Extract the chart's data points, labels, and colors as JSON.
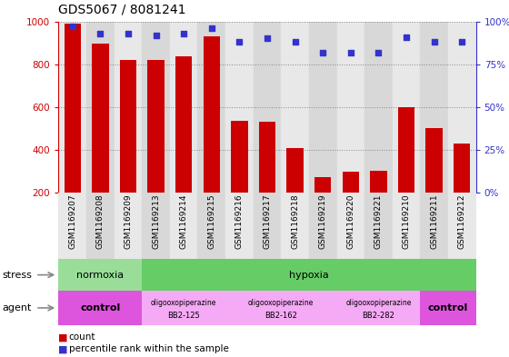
{
  "title": "GDS5067 / 8081241",
  "samples": [
    "GSM1169207",
    "GSM1169208",
    "GSM1169209",
    "GSM1169213",
    "GSM1169214",
    "GSM1169215",
    "GSM1169216",
    "GSM1169217",
    "GSM1169218",
    "GSM1169219",
    "GSM1169220",
    "GSM1169221",
    "GSM1169210",
    "GSM1169211",
    "GSM1169212"
  ],
  "counts": [
    990,
    895,
    822,
    820,
    838,
    930,
    535,
    530,
    408,
    275,
    298,
    303,
    598,
    500,
    430
  ],
  "percentiles": [
    97,
    93,
    93,
    92,
    93,
    96,
    88,
    90,
    88,
    82,
    82,
    82,
    91,
    88,
    88
  ],
  "bar_color": "#cc0000",
  "dot_color": "#3333cc",
  "ylim_left": [
    200,
    1000
  ],
  "ylim_right": [
    0,
    100
  ],
  "yticks_left": [
    200,
    400,
    600,
    800,
    1000
  ],
  "yticks_right": [
    0,
    25,
    50,
    75,
    100
  ],
  "background_color": "#ffffff",
  "col_colors": [
    "#e8e8e8",
    "#d8d8d8"
  ],
  "stress_segments": [
    {
      "start": 0,
      "end": 3,
      "color": "#99dd99",
      "label": "normoxia"
    },
    {
      "start": 3,
      "end": 15,
      "color": "#66cc66",
      "label": "hypoxia"
    }
  ],
  "agent_segments": [
    {
      "start": 0,
      "end": 3,
      "color": "#dd55dd",
      "label": "control",
      "sublabel": ""
    },
    {
      "start": 3,
      "end": 6,
      "color": "#f5aaf5",
      "label": "oligooxopiperazine",
      "sublabel": "BB2-125"
    },
    {
      "start": 6,
      "end": 10,
      "color": "#f5aaf5",
      "label": "oligooxopiperazine",
      "sublabel": "BB2-162"
    },
    {
      "start": 10,
      "end": 13,
      "color": "#f5aaf5",
      "label": "oligooxopiperazine",
      "sublabel": "BB2-282"
    },
    {
      "start": 13,
      "end": 15,
      "color": "#dd55dd",
      "label": "control",
      "sublabel": ""
    }
  ],
  "grid_color": "#888888",
  "tick_color_left": "#cc0000",
  "tick_color_right": "#3333cc",
  "legend_count_label": "count",
  "legend_pct_label": "percentile rank within the sample"
}
